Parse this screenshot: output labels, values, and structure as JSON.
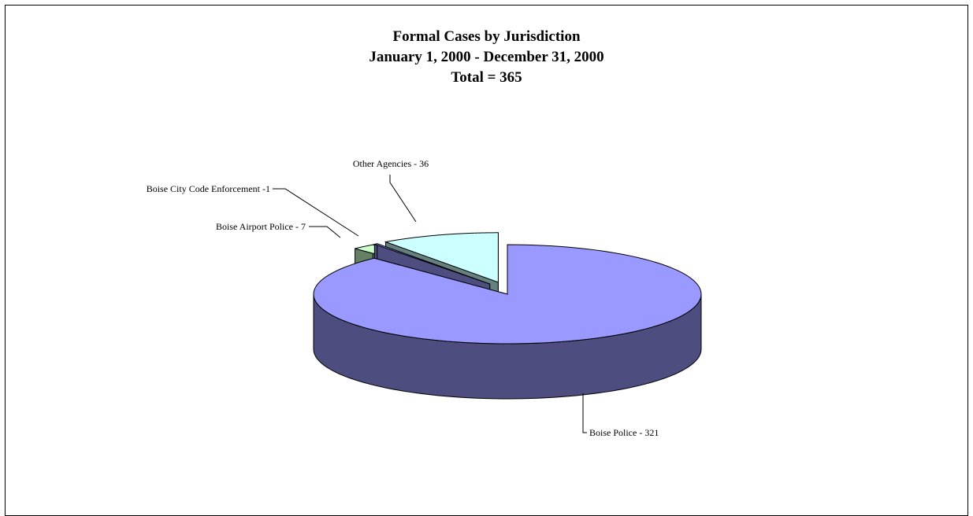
{
  "chart_data": {
    "type": "pie",
    "title_lines": [
      "Formal Cases by Jurisdiction",
      "January 1, 2000 - December 31, 2000",
      "Total = 365"
    ],
    "total": 365,
    "slices": [
      {
        "name": "Boise Police",
        "value": 321,
        "label": "Boise Police - 321",
        "color": "#9999ff",
        "side_color": "#4d4d80"
      },
      {
        "name": "Boise Airport Police",
        "value": 7,
        "label": "Boise Airport Police - 7",
        "color": "#ccffcc",
        "side_color": "#668066"
      },
      {
        "name": "Boise City Code Enforcement",
        "value": 1,
        "label": "Boise City Code Enforcement -1",
        "color": "#9999ff",
        "side_color": "#4d4d80"
      },
      {
        "name": "Other Agencies",
        "value": 36,
        "label": "Other Agencies - 36",
        "color": "#ccffff",
        "side_color": "#668080"
      }
    ],
    "exploded": true,
    "three_d": true,
    "legend": "none"
  }
}
